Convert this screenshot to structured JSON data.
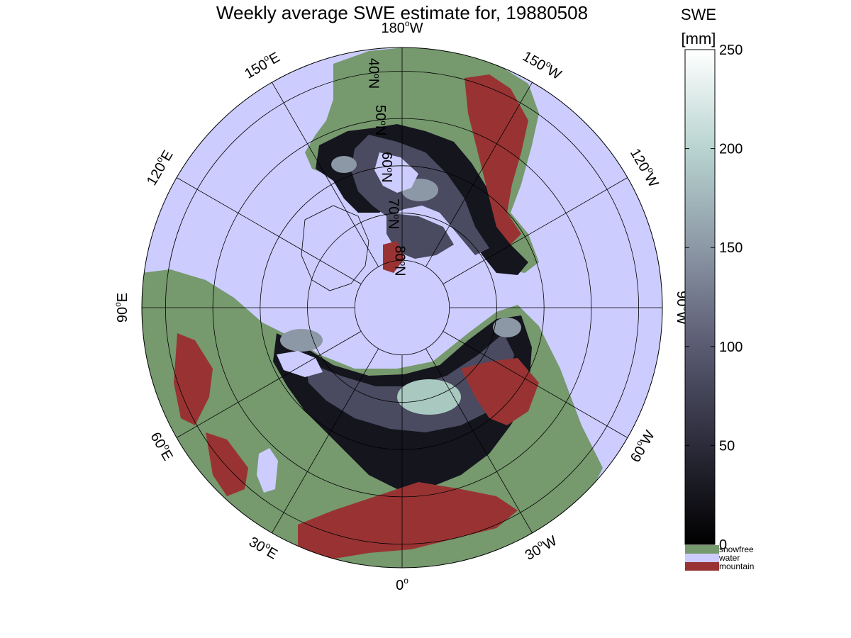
{
  "title": "Weekly average SWE estimate for, 19880508",
  "longitude_labels": [
    {
      "deg": "90",
      "dir": "W",
      "lon": -90
    },
    {
      "deg": "120",
      "dir": "W",
      "lon": -120
    },
    {
      "deg": "150",
      "dir": "W",
      "lon": -150
    },
    {
      "deg": "180",
      "dir": "W",
      "lon": 180
    },
    {
      "deg": "150",
      "dir": "E",
      "lon": 150
    },
    {
      "deg": "120",
      "dir": "E",
      "lon": 120
    },
    {
      "deg": "90",
      "dir": "E",
      "lon": 90
    },
    {
      "deg": "60",
      "dir": "E",
      "lon": 60
    },
    {
      "deg": "30",
      "dir": "E",
      "lon": 30
    },
    {
      "deg": "0",
      "dir": "",
      "lon": 0
    },
    {
      "deg": "30",
      "dir": "W",
      "lon": -30
    },
    {
      "deg": "60",
      "dir": "W",
      "lon": -60
    }
  ],
  "latitude_labels": [
    {
      "deg": "40",
      "dir": "N",
      "lat": 40
    },
    {
      "deg": "50",
      "dir": "N",
      "lat": 50
    },
    {
      "deg": "60",
      "dir": "N",
      "lat": 60
    },
    {
      "deg": "70",
      "dir": "N",
      "lat": 70
    },
    {
      "deg": "80",
      "dir": "N",
      "lat": 80
    }
  ],
  "colorbar": {
    "title_line1": "SWE",
    "title_line2": "[mm]",
    "min": 0,
    "max": 250,
    "ticks": [
      "0",
      "50",
      "100",
      "150",
      "200",
      "250"
    ],
    "gradient_colors": [
      "#000000",
      "#2b2b3a",
      "#5a5a72",
      "#8c98a6",
      "#b8d4d0",
      "#ffffff"
    ]
  },
  "legend": [
    {
      "label": "snowfree",
      "color": "#76996e"
    },
    {
      "label": "water",
      "color": "#ccccff"
    },
    {
      "label": "mountain",
      "color": "#993333"
    }
  ],
  "colors": {
    "water": "#ccccff",
    "snowfree": "#76996e",
    "mountain": "#993333",
    "snow_dark": "#15151e",
    "snow_mid": "#4a4a60",
    "snow_high": "#a8c8c0"
  }
}
